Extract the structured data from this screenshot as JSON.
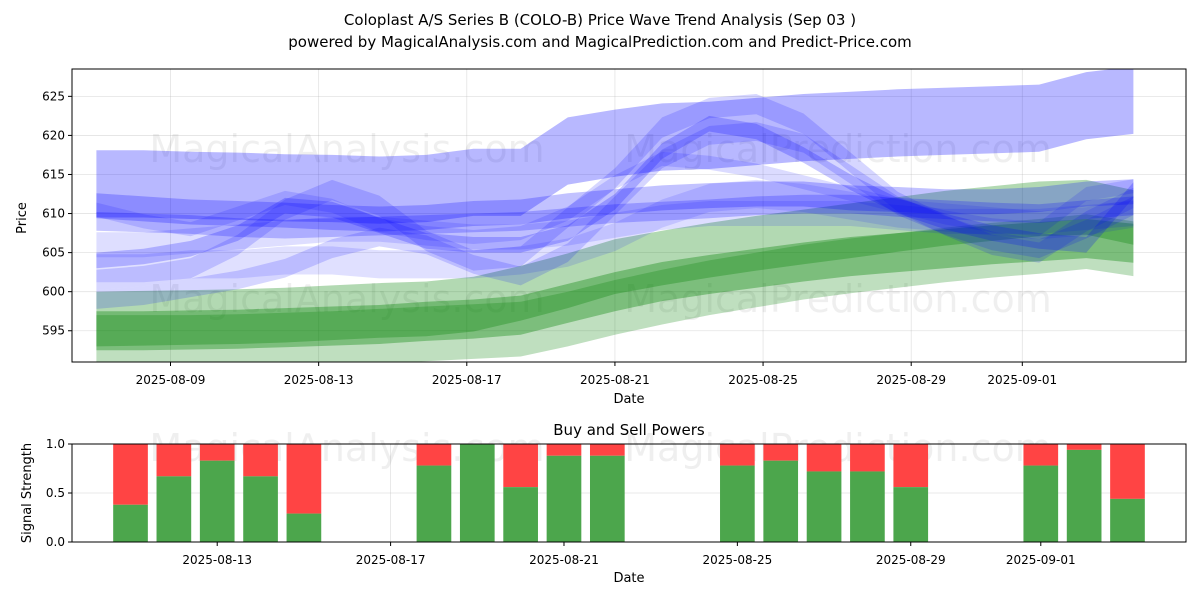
{
  "chart_data": [
    {
      "type": "area",
      "title_line1": "Coloplast A/S Series B (COLO-B) Price Wave Trend Analysis (Sep 03 )",
      "title_line2": "powered by MagicalAnalysis.com and MagicalPrediction.com and Predict-Price.com",
      "xlabel": "Date",
      "ylabel": "Price",
      "ylim": [
        591,
        628.5
      ],
      "yticks": [
        595,
        600,
        605,
        610,
        615,
        620,
        625
      ],
      "xticks": [
        "2025-08-09",
        "2025-08-13",
        "2025-08-17",
        "2025-08-21",
        "2025-08-25",
        "2025-08-29",
        "2025-09-01"
      ],
      "grid": true,
      "colors": {
        "blue": "#0000ff",
        "green": "#008000"
      },
      "blue_bands": [
        {
          "center": [
            613.8,
            613.8,
            613.6,
            613.5,
            613.3,
            613.2,
            613.0,
            613.2,
            614.0,
            614.0,
            618.0,
            619.0,
            619.8,
            620.0,
            620.5,
            621.0,
            621.3,
            621.6,
            621.8,
            622.0,
            622.2,
            623.8,
            624.5
          ],
          "half_width": 4.3,
          "alpha": 0.28
        },
        {
          "center": [
            611.0,
            610.6,
            610.2,
            610.0,
            609.8,
            609.5,
            609.3,
            609.5,
            610.0,
            610.2,
            611.0,
            611.5,
            612.0,
            612.3,
            612.5,
            612.5,
            612.0,
            611.8,
            611.5,
            611.5,
            611.8,
            612.5,
            612.8
          ],
          "half_width": 1.6,
          "alpha": 0.24
        },
        {
          "center": [
            609.0,
            608.8,
            608.6,
            608.2,
            608.0,
            608.2,
            608.4,
            608.6,
            608.8,
            609.0,
            609.5,
            610.0,
            610.3,
            610.6,
            611.0,
            611.2,
            611.2,
            610.8,
            610.5,
            610.2,
            610.0,
            610.5,
            611.0
          ],
          "half_width": 1.2,
          "alpha": 0.22
        },
        {
          "center": [
            604.0,
            604.5,
            605.5,
            607.5,
            611.0,
            610.5,
            608.5,
            606.5,
            606.0,
            606.0,
            607.5,
            611.5,
            618.0,
            621.5,
            620.5,
            617.5,
            614.0,
            611.0,
            609.0,
            607.5,
            606.5,
            606.0,
            613.0
          ],
          "half_width": 1.0,
          "alpha": 0.22
        },
        {
          "center": [
            601.5,
            602.0,
            603.0,
            606.0,
            610.5,
            613.0,
            611.0,
            606.5,
            604.0,
            604.5,
            609.5,
            614.5,
            621.0,
            623.5,
            624.0,
            621.5,
            616.5,
            611.5,
            608.5,
            606.0,
            605.0,
            609.0,
            612.0
          ],
          "half_width": 1.3,
          "alpha": 0.16
        },
        {
          "center": [
            599.0,
            599.5,
            600.5,
            601.5,
            603.0,
            605.5,
            607.0,
            606.0,
            603.5,
            602.0,
            605.0,
            611.0,
            617.0,
            620.0,
            620.5,
            619.0,
            615.0,
            611.0,
            608.5,
            606.5,
            605.5,
            608.0,
            611.0
          ],
          "half_width": 1.2,
          "alpha": 0.16
        },
        {
          "center": [
            606.0,
            606.0,
            606.5,
            607.0,
            607.5,
            608.0,
            608.0,
            607.5,
            607.0,
            607.0,
            607.5,
            608.5,
            609.5,
            610.0,
            610.0,
            610.0,
            610.0,
            609.5,
            609.0,
            609.0,
            609.0,
            609.5,
            610.0
          ],
          "half_width": 1.6,
          "alpha": 0.13
        },
        {
          "center": [
            603.0,
            603.0,
            603.5,
            603.5,
            604.0,
            604.0,
            603.5,
            603.5,
            603.5,
            604.0,
            605.0,
            607.0,
            610.0,
            612.0,
            612.5,
            612.0,
            611.0,
            610.0,
            609.5,
            609.0,
            608.5,
            609.0,
            610.0
          ],
          "half_width": 1.8,
          "alpha": 0.12
        },
        {
          "center": [
            610.5,
            609.0,
            608.0,
            610.0,
            612.0,
            611.0,
            608.5,
            607.5,
            607.0,
            607.5,
            610.0,
            614.0,
            617.0,
            616.5,
            615.5,
            614.0,
            612.5,
            611.0,
            609.5,
            608.5,
            608.0,
            612.5,
            613.5
          ],
          "half_width": 0.9,
          "alpha": 0.14
        }
      ],
      "green_bands": [
        {
          "center": [
            596.5,
            596.6,
            596.7,
            596.8,
            597.0,
            597.3,
            597.6,
            597.8,
            598.4,
            599.8,
            601.4,
            603.2,
            604.3,
            605.3,
            606.2,
            607.0,
            607.8,
            608.6,
            609.4,
            610.0,
            610.6,
            610.8,
            609.5
          ],
          "half_width": 3.5,
          "alpha": 0.3
        },
        {
          "center": [
            595.0,
            595.0,
            595.1,
            595.2,
            595.4,
            595.6,
            595.8,
            596.2,
            596.5,
            597.0,
            598.5,
            600.0,
            601.3,
            602.2,
            603.0,
            603.8,
            604.5,
            605.0,
            605.5,
            606.0,
            606.4,
            606.8,
            606.2
          ],
          "half_width": 2.5,
          "alpha": 0.35
        },
        {
          "center": [
            593.5,
            593.5,
            593.5,
            593.6,
            593.8,
            594.0,
            594.3,
            594.6,
            594.9,
            595.2,
            596.5,
            598.0,
            599.3,
            600.5,
            601.5,
            602.5,
            603.3,
            604.0,
            604.7,
            605.3,
            605.8,
            606.4,
            605.5
          ],
          "half_width": 3.5,
          "alpha": 0.25
        }
      ]
    },
    {
      "type": "bar",
      "title": "Buy and Sell Powers",
      "xlabel": "Date",
      "ylabel": "Signal Strength",
      "ylim": [
        0,
        1.0
      ],
      "yticks": [
        "0.0",
        "0.5",
        "1.0"
      ],
      "xticks": [
        "2025-08-13",
        "2025-08-17",
        "2025-08-21",
        "2025-08-25",
        "2025-08-29",
        "2025-09-01"
      ],
      "colors": {
        "buy": "#4ca64c",
        "sell": "#ff4444"
      },
      "dates": [
        "2025-08-11",
        "2025-08-12",
        "2025-08-13",
        "2025-08-14",
        "2025-08-15",
        "2025-08-18",
        "2025-08-19",
        "2025-08-20",
        "2025-08-21",
        "2025-08-22",
        "2025-08-25",
        "2025-08-26",
        "2025-08-27",
        "2025-08-28",
        "2025-08-29",
        "2025-09-01",
        "2025-09-02",
        "2025-09-03"
      ],
      "buy": [
        0.38,
        0.67,
        0.83,
        0.67,
        0.29,
        0.78,
        1.0,
        0.56,
        0.88,
        0.88,
        0.78,
        0.83,
        0.72,
        0.72,
        0.56,
        0.78,
        0.94,
        0.44
      ]
    }
  ],
  "watermarks": [
    "MagicalAnalysis.com",
    "MagicalPrediction.com"
  ]
}
